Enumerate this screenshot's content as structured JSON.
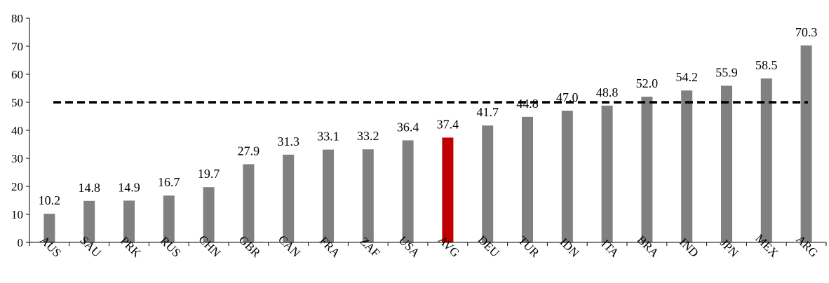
{
  "chart_data": {
    "type": "bar",
    "categories": [
      "AUS",
      "SAU",
      "PRK",
      "RUS",
      "CHN",
      "GBR",
      "CAN",
      "FRA",
      "ZAF",
      "USA",
      "AVG",
      "DEU",
      "TUR",
      "IDN",
      "ITA",
      "BRA",
      "IND",
      "JPN",
      "MEX",
      "ARG"
    ],
    "values": [
      10.2,
      14.8,
      14.9,
      16.7,
      19.7,
      27.9,
      31.3,
      33.1,
      33.2,
      36.4,
      37.4,
      41.7,
      44.8,
      47.0,
      48.8,
      52.0,
      54.2,
      55.9,
      58.5,
      70.3
    ],
    "value_labels": [
      "10.2",
      "14.8",
      "14.9",
      "16.7",
      "19.7",
      "27.9",
      "31.3",
      "33.1",
      "33.2",
      "36.4",
      "37.4",
      "41.7",
      "44.8",
      "47.0",
      "48.8",
      "52.0",
      "54.2",
      "55.9",
      "58.5",
      "70.3"
    ],
    "highlight_category": "AVG",
    "colors": {
      "bar": "#808080",
      "highlight": "#c00000",
      "reference_line": "#000000"
    },
    "reference_line": {
      "value": 50,
      "style": "dashed"
    },
    "ylim": [
      0,
      80
    ],
    "yticks": [
      "0",
      "10",
      "20",
      "30",
      "40",
      "50",
      "60",
      "70",
      "80"
    ],
    "grid": false,
    "title": "",
    "xlabel": "",
    "ylabel": ""
  }
}
